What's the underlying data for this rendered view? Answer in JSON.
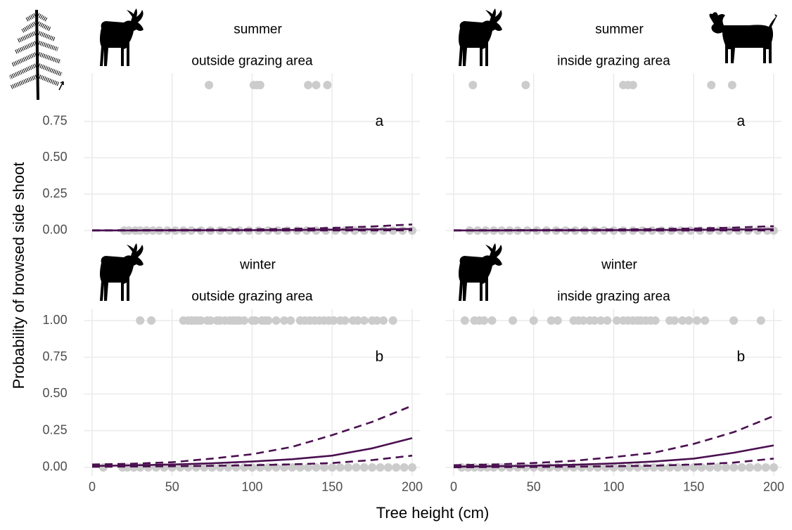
{
  "chart_data": [
    {
      "type": "scatter",
      "strip": [
        "summer",
        "outside grazing area"
      ],
      "label": "a",
      "ylabel": "Probability of browsed side shoot",
      "xlim": [
        -5,
        205
      ],
      "ylim": [
        -0.06,
        1.08
      ],
      "xticks": [
        0,
        50,
        100,
        150,
        200
      ],
      "yticks": [
        {
          "value": 0,
          "label": "0.00"
        },
        {
          "value": 0.25,
          "label": "0.25"
        },
        {
          "value": 0.5,
          "label": "0.50"
        },
        {
          "value": 0.75,
          "label": "0.75"
        }
      ],
      "point_color": "#cccccc",
      "line_color": "#4a1050",
      "points": [
        {
          "y": 1,
          "x": [
            73,
            101,
            103,
            105,
            135,
            140,
            147
          ]
        },
        {
          "y": 0,
          "x": [
            20,
            23,
            27,
            30,
            34,
            38,
            42,
            47,
            52,
            57,
            62,
            68,
            74,
            80,
            86,
            92,
            98,
            104,
            110,
            116,
            122,
            128,
            134,
            140,
            146,
            152,
            158,
            164,
            170,
            176,
            182,
            188,
            194,
            200
          ]
        }
      ],
      "lines": [
        {
          "dashed": false,
          "x": [
            0,
            25,
            50,
            75,
            100,
            125,
            150,
            175,
            200
          ],
          "values": [
            0.001,
            0.001,
            0.002,
            0.002,
            0.003,
            0.004,
            0.006,
            0.008,
            0.011
          ]
        },
        {
          "dashed": true,
          "x": [
            0,
            25,
            50,
            75,
            100,
            125,
            150,
            175,
            200
          ],
          "values": [
            0.002,
            0.003,
            0.004,
            0.006,
            0.008,
            0.012,
            0.018,
            0.028,
            0.042
          ]
        },
        {
          "dashed": true,
          "x": [
            0,
            25,
            50,
            75,
            100,
            125,
            150,
            175,
            200
          ],
          "values": [
            0,
            0,
            0,
            0,
            0,
            0,
            0.001,
            0.001,
            0.002
          ]
        }
      ]
    },
    {
      "type": "scatter",
      "strip": [
        "summer",
        "inside grazing area"
      ],
      "label": "a",
      "xlim": [
        -5,
        205
      ],
      "ylim": [
        -0.06,
        1.08
      ],
      "xticks": [
        0,
        50,
        100,
        150,
        200
      ],
      "yticks": [
        {
          "value": 0,
          "label": "0.00"
        },
        {
          "value": 0.25,
          "label": "0.25"
        },
        {
          "value": 0.5,
          "label": "0.50"
        },
        {
          "value": 0.75,
          "label": "0.75"
        }
      ],
      "point_color": "#cccccc",
      "line_color": "#4a1050",
      "points": [
        {
          "y": 1,
          "x": [
            12,
            45,
            106,
            109,
            112,
            161,
            174
          ]
        },
        {
          "y": 0,
          "x": [
            10,
            15,
            20,
            25,
            30,
            35,
            40,
            46,
            52,
            58,
            64,
            70,
            76,
            82,
            88,
            94,
            100,
            106,
            112,
            118,
            124,
            130,
            136,
            142,
            148,
            154,
            160,
            166,
            172,
            178,
            184,
            190,
            196,
            200
          ]
        }
      ],
      "lines": [
        {
          "dashed": false,
          "x": [
            0,
            25,
            50,
            75,
            100,
            125,
            150,
            175,
            200
          ],
          "values": [
            0.001,
            0.001,
            0.002,
            0.002,
            0.003,
            0.004,
            0.005,
            0.007,
            0.009
          ]
        },
        {
          "dashed": true,
          "x": [
            0,
            25,
            50,
            75,
            100,
            125,
            150,
            175,
            200
          ],
          "values": [
            0.002,
            0.003,
            0.004,
            0.005,
            0.007,
            0.01,
            0.014,
            0.02,
            0.03
          ]
        },
        {
          "dashed": true,
          "x": [
            0,
            25,
            50,
            75,
            100,
            125,
            150,
            175,
            200
          ],
          "values": [
            0,
            0,
            0,
            0,
            0,
            0,
            0,
            0.001,
            0.001
          ]
        }
      ]
    },
    {
      "type": "scatter",
      "strip": [
        "winter",
        "outside grazing area"
      ],
      "label": "b",
      "xlabel": "Tree height (cm)",
      "xlim": [
        -5,
        205
      ],
      "ylim": [
        -0.06,
        1.08
      ],
      "xticks": [
        0,
        50,
        100,
        150,
        200
      ],
      "yticks": [
        {
          "value": 0,
          "label": "0.00"
        },
        {
          "value": 0.25,
          "label": "0.25"
        },
        {
          "value": 0.5,
          "label": "0.50"
        },
        {
          "value": 0.75,
          "label": "0.75"
        },
        {
          "value": 1,
          "label": "1.00"
        }
      ],
      "point_color": "#cccccc",
      "line_color": "#4a1050",
      "points": [
        {
          "y": 1,
          "x": [
            30,
            37,
            57,
            60,
            62,
            64,
            66,
            68,
            72,
            74,
            78,
            80,
            83,
            86,
            88,
            90,
            92,
            95,
            100,
            102,
            106,
            108,
            110,
            115,
            120,
            124,
            130,
            133,
            136,
            139,
            142,
            145,
            148,
            151,
            155,
            158,
            163,
            166,
            170,
            175,
            178,
            182,
            188
          ]
        },
        {
          "y": 0,
          "x": [
            7,
            19,
            22,
            26,
            30,
            35,
            40,
            45,
            50,
            55,
            60,
            65,
            70,
            75,
            80,
            85,
            90,
            95,
            100,
            105,
            110,
            115,
            120,
            125,
            130,
            135,
            140,
            145,
            150,
            155,
            160,
            165,
            170,
            175,
            180,
            185,
            190,
            195,
            200
          ]
        }
      ],
      "lines": [
        {
          "dashed": false,
          "x": [
            0,
            25,
            50,
            75,
            100,
            125,
            150,
            175,
            200
          ],
          "values": [
            0.01,
            0.014,
            0.02,
            0.028,
            0.04,
            0.056,
            0.08,
            0.13,
            0.2
          ]
        },
        {
          "dashed": true,
          "x": [
            0,
            25,
            50,
            75,
            100,
            125,
            150,
            175,
            200
          ],
          "values": [
            0.02,
            0.025,
            0.035,
            0.06,
            0.09,
            0.14,
            0.22,
            0.31,
            0.42
          ]
        },
        {
          "dashed": true,
          "x": [
            0,
            25,
            50,
            75,
            100,
            125,
            150,
            175,
            200
          ],
          "values": [
            0.004,
            0.006,
            0.008,
            0.011,
            0.015,
            0.021,
            0.03,
            0.05,
            0.08
          ]
        }
      ]
    },
    {
      "type": "scatter",
      "strip": [
        "winter",
        "inside grazing area"
      ],
      "label": "b",
      "xlim": [
        -5,
        205
      ],
      "ylim": [
        -0.06,
        1.08
      ],
      "xticks": [
        0,
        50,
        100,
        150,
        200
      ],
      "yticks": [
        {
          "value": 0,
          "label": "0.00"
        },
        {
          "value": 0.25,
          "label": "0.25"
        },
        {
          "value": 0.5,
          "label": "0.50"
        },
        {
          "value": 0.75,
          "label": "0.75"
        },
        {
          "value": 1,
          "label": "1.00"
        }
      ],
      "point_color": "#cccccc",
      "line_color": "#4a1050",
      "points": [
        {
          "y": 1,
          "x": [
            7,
            13,
            16,
            19,
            24,
            37,
            50,
            61,
            65,
            75,
            78,
            81,
            85,
            88,
            92,
            96,
            102,
            106,
            109,
            112,
            115,
            117,
            120,
            123,
            126,
            135,
            138,
            143,
            147,
            152,
            157,
            175,
            192
          ]
        },
        {
          "y": 0,
          "x": [
            5,
            9,
            13,
            17,
            21,
            25,
            30,
            35,
            40,
            45,
            50,
            55,
            60,
            65,
            70,
            75,
            80,
            85,
            90,
            95,
            100,
            105,
            110,
            115,
            120,
            125,
            130,
            135,
            140,
            145,
            150,
            155,
            160,
            165,
            170,
            175,
            180,
            185,
            190,
            195,
            200
          ]
        }
      ],
      "lines": [
        {
          "dashed": false,
          "x": [
            0,
            25,
            50,
            75,
            100,
            125,
            150,
            175,
            200
          ],
          "values": [
            0.005,
            0.008,
            0.012,
            0.018,
            0.027,
            0.04,
            0.06,
            0.1,
            0.15
          ]
        },
        {
          "dashed": true,
          "x": [
            0,
            25,
            50,
            75,
            100,
            125,
            150,
            175,
            200
          ],
          "values": [
            0.015,
            0.02,
            0.03,
            0.045,
            0.07,
            0.1,
            0.16,
            0.24,
            0.35
          ]
        },
        {
          "dashed": true,
          "x": [
            0,
            25,
            50,
            75,
            100,
            125,
            150,
            175,
            200
          ],
          "values": [
            0.001,
            0.002,
            0.003,
            0.005,
            0.008,
            0.012,
            0.02,
            0.033,
            0.06
          ]
        }
      ]
    }
  ]
}
